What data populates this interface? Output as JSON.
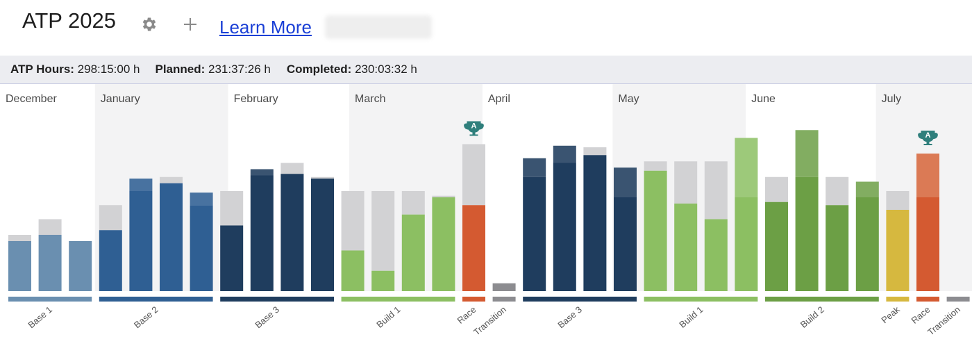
{
  "header": {
    "title": "ATP 2025",
    "learn_more": "Learn More"
  },
  "summary": {
    "atp_hours_label": "ATP Hours:",
    "atp_hours_value": "298:15:00 h",
    "planned_label": "Planned:",
    "planned_value": "231:37:26 h",
    "completed_label": "Completed:",
    "completed_value": "230:03:32 h"
  },
  "icons": {
    "settings": "gear-icon",
    "add": "plus-icon",
    "race_marker": "trophy-a-icon"
  },
  "colors": {
    "base1": "#6a8fb0",
    "base2": "#2f5f93",
    "base3": "#1f3d5e",
    "build1": "#8cbf62",
    "build2": "#6c9f45",
    "peak": "#d6b83f",
    "race": "#d45a31",
    "transition": "#8c8c90",
    "planned_gray": "#d2d2d4",
    "trophy": "#2f7f7c"
  },
  "chart_data": {
    "type": "bar",
    "title": "",
    "xlabel": "",
    "ylabel": "",
    "months": [
      "December",
      "January",
      "February",
      "March",
      "April",
      "May",
      "June",
      "July"
    ],
    "month_week_counts": [
      3,
      4.4,
      4,
      4.4,
      4.3,
      4.4,
      4.3,
      2.8
    ],
    "weeks": [
      {
        "phase": "base1",
        "completed": 32,
        "planned": 36,
        "excess": 0
      },
      {
        "phase": "base1",
        "completed": 36,
        "planned": 46,
        "excess": 0
      },
      {
        "phase": "base1",
        "completed": 32,
        "planned": 32,
        "excess": 0
      },
      {
        "phase": "base2",
        "completed": 39,
        "planned": 55,
        "excess": 0
      },
      {
        "phase": "base2",
        "completed": 64,
        "planned": 64,
        "excess": 8
      },
      {
        "phase": "base2",
        "completed": 69,
        "planned": 73,
        "excess": 0
      },
      {
        "phase": "base2",
        "completed": 55,
        "planned": 55,
        "excess": 8
      },
      {
        "phase": "base3",
        "completed": 42,
        "planned": 64,
        "excess": 0
      },
      {
        "phase": "base3",
        "completed": 74,
        "planned": 74,
        "excess": 4
      },
      {
        "phase": "base3",
        "completed": 75,
        "planned": 82,
        "excess": 0
      },
      {
        "phase": "base3",
        "completed": 72,
        "planned": 73,
        "excess": 0
      },
      {
        "phase": "build1",
        "completed": 26,
        "planned": 64,
        "excess": 0
      },
      {
        "phase": "build1",
        "completed": 13,
        "planned": 64,
        "excess": 0
      },
      {
        "phase": "build1",
        "completed": 49,
        "planned": 64,
        "excess": 0
      },
      {
        "phase": "build1",
        "completed": 60,
        "planned": 61,
        "excess": 0
      },
      {
        "phase": "race",
        "completed": 55,
        "planned": 94,
        "excess": 0,
        "race": true
      },
      {
        "phase": "transition",
        "completed": 5,
        "planned": 5,
        "excess": 0
      },
      {
        "phase": "base3",
        "completed": 73,
        "planned": 73,
        "excess": 12
      },
      {
        "phase": "base3",
        "completed": 82,
        "planned": 82,
        "excess": 11
      },
      {
        "phase": "base3",
        "completed": 87,
        "planned": 92,
        "excess": 0
      },
      {
        "phase": "base3",
        "completed": 60,
        "planned": 60,
        "excess": 19
      },
      {
        "phase": "build1",
        "completed": 77,
        "planned": 83,
        "excess": 0
      },
      {
        "phase": "build1",
        "completed": 56,
        "planned": 83,
        "excess": 0
      },
      {
        "phase": "build1",
        "completed": 46,
        "planned": 83,
        "excess": 0
      },
      {
        "phase": "build1",
        "completed": 60,
        "planned": 60,
        "excess": 38
      },
      {
        "phase": "build2",
        "completed": 57,
        "planned": 73,
        "excess": 0
      },
      {
        "phase": "build2",
        "completed": 73,
        "planned": 73,
        "excess": 30
      },
      {
        "phase": "build2",
        "completed": 55,
        "planned": 73,
        "excess": 0
      },
      {
        "phase": "build2",
        "completed": 60,
        "planned": 60,
        "excess": 10
      },
      {
        "phase": "peak",
        "completed": 52,
        "planned": 64,
        "excess": 0
      },
      {
        "phase": "race",
        "completed": 60,
        "planned": 60,
        "excess": 28,
        "race": true
      }
    ],
    "phase_segments": [
      {
        "label": "Base 1",
        "phase": "base1",
        "start": 0,
        "end": 2
      },
      {
        "label": "Base 2",
        "phase": "base2",
        "start": 3,
        "end": 6
      },
      {
        "label": "Base 3",
        "phase": "base3",
        "start": 7,
        "end": 10
      },
      {
        "label": "Build 1",
        "phase": "build1",
        "start": 11,
        "end": 14
      },
      {
        "label": "Race",
        "phase": "race",
        "start": 15,
        "end": 15
      },
      {
        "label": "Transition",
        "phase": "transition",
        "start": 16,
        "end": 16
      },
      {
        "label": "Base 3",
        "phase": "base3",
        "start": 17,
        "end": 20
      },
      {
        "label": "Build 1",
        "phase": "build1",
        "start": 21,
        "end": 24
      },
      {
        "label": "Build 2",
        "phase": "build2",
        "start": 25,
        "end": 28
      },
      {
        "label": "Peak",
        "phase": "peak",
        "start": 29,
        "end": 29
      },
      {
        "label": "Race",
        "phase": "race",
        "start": 30,
        "end": 30
      },
      {
        "label": "Transition",
        "phase": "transition",
        "start": 31,
        "end": 31
      }
    ],
    "race_marker_label": "A"
  }
}
